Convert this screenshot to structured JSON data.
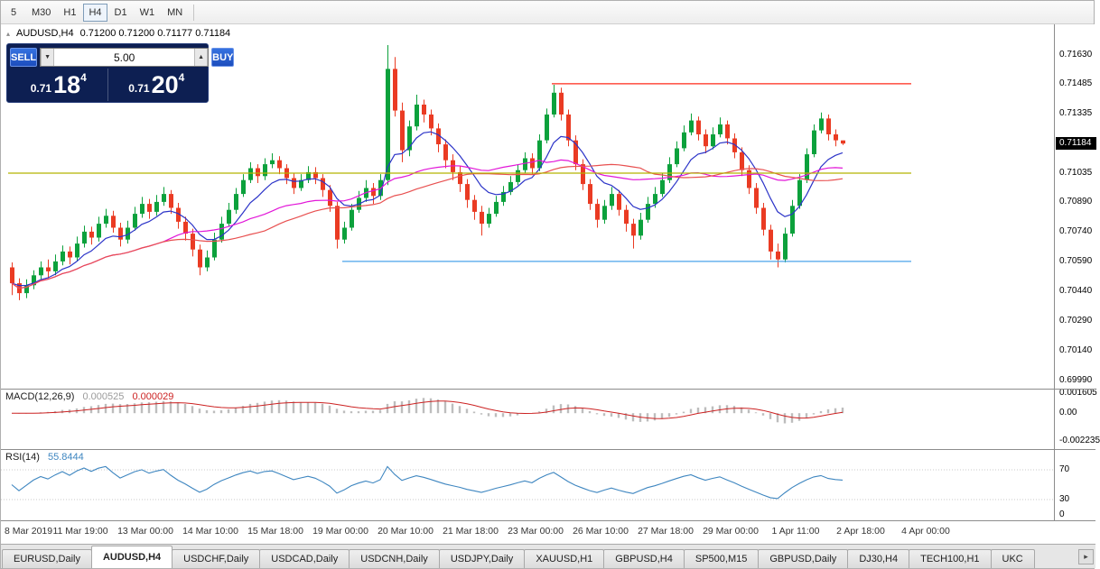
{
  "toolbar": {
    "timeframes": [
      {
        "label": "5",
        "selected": false
      },
      {
        "label": "M30",
        "selected": false
      },
      {
        "label": "H1",
        "selected": false
      },
      {
        "label": "H4",
        "selected": true
      },
      {
        "label": "D1",
        "selected": false
      },
      {
        "label": "W1",
        "selected": false
      },
      {
        "label": "MN",
        "selected": false
      }
    ]
  },
  "chart_header": {
    "collapse_icon": "▴",
    "symbol": "AUDUSD,H4",
    "ohlc": "0.71200 0.71200 0.71177 0.71184"
  },
  "trade_panel": {
    "sell_label": "SELL",
    "buy_label": "BUY",
    "volume": "5.00",
    "spin_up": "▲",
    "spin_down": "▼",
    "bid_prefix": "0.71",
    "bid_big": "18",
    "bid_sup": "4",
    "ask_prefix": "0.71",
    "ask_big": "20",
    "ask_sup": "4"
  },
  "tabs": {
    "scroll_right": "▸",
    "items": [
      {
        "label": "EURUSD,Daily",
        "selected": false
      },
      {
        "label": "AUDUSD,H4",
        "selected": true
      },
      {
        "label": "USDCHF,Daily",
        "selected": false
      },
      {
        "label": "USDCAD,Daily",
        "selected": false
      },
      {
        "label": "USDCNH,Daily",
        "selected": false
      },
      {
        "label": "USDJPY,Daily",
        "selected": false
      },
      {
        "label": "XAUUSD,H1",
        "selected": false
      },
      {
        "label": "GBPUSD,H4",
        "selected": false
      },
      {
        "label": "SP500,M15",
        "selected": false
      },
      {
        "label": "GBPUSD,Daily",
        "selected": false
      },
      {
        "label": "DJ30,H4",
        "selected": false
      },
      {
        "label": "TECH100,H1",
        "selected": false
      },
      {
        "label": "UKC",
        "selected": false
      }
    ]
  },
  "chart_data": [
    {
      "type": "candlestick",
      "symbol": "AUDUSD",
      "timeframe": "H4",
      "current_price": 0.71184,
      "current_price_label": "0.71184",
      "ohlc_current": {
        "open": 0.712,
        "high": 0.712,
        "low": 0.71177,
        "close": 0.71184
      },
      "ylim": [
        0.69948,
        0.71784
      ],
      "yticks": [
        {
          "price": 0.7163,
          "label": "0.71630"
        },
        {
          "price": 0.71485,
          "label": "0.71485"
        },
        {
          "price": 0.71335,
          "label": "0.71335"
        },
        {
          "price": 0.71035,
          "label": "0.71035"
        },
        {
          "price": 0.7089,
          "label": "0.70890"
        },
        {
          "price": 0.7074,
          "label": "0.70740"
        },
        {
          "price": 0.7059,
          "label": "0.70590"
        },
        {
          "price": 0.7044,
          "label": "0.70440"
        },
        {
          "price": 0.7029,
          "label": "0.70290"
        },
        {
          "price": 0.7014,
          "label": "0.70140"
        },
        {
          "price": 0.6999,
          "label": "0.69990"
        }
      ],
      "xticklabels": [
        "8 Mar 2019",
        "11 Mar 19:00",
        "13 Mar 00:00",
        "14 Mar 10:00",
        "15 Mar 18:00",
        "19 Mar 00:00",
        "20 Mar 10:00",
        "21 Mar 18:00",
        "23 Mar 00:00",
        "26 Mar 10:00",
        "27 Mar 18:00",
        "29 Mar 00:00",
        "1 Apr 11:00",
        "2 Apr 18:00",
        "4 Apr 00:00"
      ],
      "colors": {
        "up": "#0ca13c",
        "down": "#ea3b23",
        "bg": "#ffffff"
      },
      "overlays": [
        {
          "name": "ma-fast-blue",
          "method": "ema",
          "period": 8,
          "color": "#2c34c8"
        },
        {
          "name": "ma-mid-magenta",
          "method": "sma",
          "period": 22,
          "color": "#e216d8"
        },
        {
          "name": "ma-slow-red",
          "method": "sma",
          "period": 36,
          "color": "#e85050"
        }
      ],
      "hlines": [
        {
          "name": "resistance-line",
          "price": 0.71485,
          "color": "#ff2a1a",
          "x_from": 610
        },
        {
          "name": "mid-level-line",
          "price": 0.71035,
          "color": "#b5b400",
          "x_from": 8
        },
        {
          "name": "support-line",
          "price": 0.7059,
          "color": "#4ba4ea",
          "x_from": 378
        }
      ],
      "layout": {
        "x0": 10,
        "dx": 8,
        "candle_w": 5,
        "plot_right": 1008,
        "xtick_step_candles": 9,
        "price_anchor": [
          [
            0.7163,
            34
          ],
          [
            0.6999,
            395
          ]
        ]
      },
      "candles": [
        [
          0.7056,
          0.70585,
          0.7042,
          0.7048
        ],
        [
          0.7048,
          0.70505,
          0.70395,
          0.7043
        ],
        [
          0.7043,
          0.705,
          0.70405,
          0.7047
        ],
        [
          0.7047,
          0.70545,
          0.7045,
          0.7052
        ],
        [
          0.7052,
          0.7059,
          0.705,
          0.7056
        ],
        [
          0.7056,
          0.706,
          0.70505,
          0.7054
        ],
        [
          0.7054,
          0.70625,
          0.7052,
          0.7059
        ],
        [
          0.7059,
          0.7067,
          0.7057,
          0.7064
        ],
        [
          0.7064,
          0.70665,
          0.70575,
          0.7061
        ],
        [
          0.7061,
          0.70715,
          0.7059,
          0.7068
        ],
        [
          0.7068,
          0.7077,
          0.7066,
          0.7074
        ],
        [
          0.7074,
          0.70765,
          0.70675,
          0.7071
        ],
        [
          0.7071,
          0.70815,
          0.7069,
          0.7078
        ],
        [
          0.7078,
          0.70855,
          0.7076,
          0.7082
        ],
        [
          0.7082,
          0.70845,
          0.70735,
          0.7076
        ],
        [
          0.7076,
          0.70785,
          0.70665,
          0.707
        ],
        [
          0.707,
          0.70795,
          0.7068,
          0.7076
        ],
        [
          0.7076,
          0.70865,
          0.70745,
          0.7083
        ],
        [
          0.7083,
          0.70915,
          0.7081,
          0.7088
        ],
        [
          0.7088,
          0.70905,
          0.70805,
          0.7084
        ],
        [
          0.7084,
          0.70925,
          0.7082,
          0.7089
        ],
        [
          0.7089,
          0.70965,
          0.7087,
          0.7093
        ],
        [
          0.7093,
          0.7095,
          0.7083,
          0.7086
        ],
        [
          0.7086,
          0.70885,
          0.70755,
          0.7079
        ],
        [
          0.7079,
          0.70815,
          0.70695,
          0.7073
        ],
        [
          0.7073,
          0.70755,
          0.70615,
          0.7065
        ],
        [
          0.7065,
          0.70675,
          0.7052,
          0.7056
        ],
        [
          0.7056,
          0.70645,
          0.7054,
          0.7061
        ],
        [
          0.7061,
          0.70735,
          0.70595,
          0.707
        ],
        [
          0.707,
          0.70815,
          0.70685,
          0.7078
        ],
        [
          0.7078,
          0.70885,
          0.70765,
          0.7085
        ],
        [
          0.7085,
          0.7096,
          0.7083,
          0.7093
        ],
        [
          0.7093,
          0.7103,
          0.70915,
          0.71
        ],
        [
          0.71,
          0.7109,
          0.70985,
          0.7106
        ],
        [
          0.7106,
          0.7108,
          0.70985,
          0.7102
        ],
        [
          0.7102,
          0.7111,
          0.71,
          0.7108
        ],
        [
          0.7108,
          0.71135,
          0.7106,
          0.711
        ],
        [
          0.711,
          0.7112,
          0.7103,
          0.7106
        ],
        [
          0.7106,
          0.7108,
          0.7098,
          0.7101
        ],
        [
          0.7101,
          0.71035,
          0.7093,
          0.7096
        ],
        [
          0.7096,
          0.7103,
          0.70945,
          0.71
        ],
        [
          0.71,
          0.7107,
          0.70985,
          0.7104
        ],
        [
          0.7104,
          0.71065,
          0.7098,
          0.7101
        ],
        [
          0.7101,
          0.7103,
          0.70915,
          0.7095
        ],
        [
          0.7095,
          0.70975,
          0.7084,
          0.7087
        ],
        [
          0.7087,
          0.7089,
          0.70655,
          0.707
        ],
        [
          0.707,
          0.7079,
          0.7068,
          0.7076
        ],
        [
          0.7076,
          0.7088,
          0.70745,
          0.7085
        ],
        [
          0.7085,
          0.70945,
          0.70835,
          0.7091
        ],
        [
          0.7091,
          0.71,
          0.7089,
          0.7096
        ],
        [
          0.7096,
          0.70985,
          0.7088,
          0.7092
        ],
        [
          0.7092,
          0.7103,
          0.709,
          0.71
        ],
        [
          0.71,
          0.7168,
          0.70975,
          0.7156
        ],
        [
          0.7156,
          0.7162,
          0.7132,
          0.7135
        ],
        [
          0.7135,
          0.7139,
          0.7109,
          0.7115
        ],
        [
          0.7115,
          0.713,
          0.7112,
          0.7127
        ],
        [
          0.7127,
          0.7143,
          0.7125,
          0.7138
        ],
        [
          0.7138,
          0.71405,
          0.7129,
          0.7133
        ],
        [
          0.7133,
          0.71355,
          0.71225,
          0.7126
        ],
        [
          0.7126,
          0.71285,
          0.7114,
          0.7118
        ],
        [
          0.7118,
          0.71205,
          0.7106,
          0.711
        ],
        [
          0.711,
          0.7113,
          0.71,
          0.7104
        ],
        [
          0.7104,
          0.7107,
          0.7094,
          0.7098
        ],
        [
          0.7098,
          0.71005,
          0.7086,
          0.709
        ],
        [
          0.709,
          0.70925,
          0.708,
          0.7084
        ],
        [
          0.7084,
          0.7087,
          0.7072,
          0.7078
        ],
        [
          0.7078,
          0.7086,
          0.7076,
          0.7083
        ],
        [
          0.7083,
          0.7092,
          0.70815,
          0.7089
        ],
        [
          0.7089,
          0.7097,
          0.7087,
          0.7094
        ],
        [
          0.7094,
          0.7102,
          0.70925,
          0.7099
        ],
        [
          0.7099,
          0.7108,
          0.70975,
          0.7105
        ],
        [
          0.7105,
          0.7114,
          0.71035,
          0.7111
        ],
        [
          0.7111,
          0.71135,
          0.7103,
          0.7106
        ],
        [
          0.7106,
          0.7123,
          0.71045,
          0.712
        ],
        [
          0.712,
          0.7136,
          0.71185,
          0.7133
        ],
        [
          0.7133,
          0.7148,
          0.71315,
          0.7144
        ],
        [
          0.7144,
          0.71465,
          0.713,
          0.7133
        ],
        [
          0.7133,
          0.71355,
          0.7117,
          0.712
        ],
        [
          0.712,
          0.71225,
          0.7105,
          0.7108
        ],
        [
          0.7108,
          0.71105,
          0.7095,
          0.7098
        ],
        [
          0.7098,
          0.71005,
          0.7085,
          0.7088
        ],
        [
          0.7088,
          0.70905,
          0.7076,
          0.708
        ],
        [
          0.708,
          0.709,
          0.7078,
          0.7087
        ],
        [
          0.7087,
          0.70965,
          0.7085,
          0.7093
        ],
        [
          0.7093,
          0.7095,
          0.7082,
          0.7085
        ],
        [
          0.7085,
          0.70875,
          0.7074,
          0.7078
        ],
        [
          0.7078,
          0.70805,
          0.70655,
          0.7072
        ],
        [
          0.7072,
          0.70835,
          0.707,
          0.708
        ],
        [
          0.708,
          0.70915,
          0.70785,
          0.7088
        ],
        [
          0.7088,
          0.70965,
          0.7086,
          0.7093
        ],
        [
          0.7093,
          0.71035,
          0.70915,
          0.71
        ],
        [
          0.71,
          0.71115,
          0.70985,
          0.7108
        ],
        [
          0.7108,
          0.71195,
          0.71065,
          0.7116
        ],
        [
          0.7116,
          0.71275,
          0.71145,
          0.7124
        ],
        [
          0.7124,
          0.71335,
          0.71225,
          0.713
        ],
        [
          0.713,
          0.7132,
          0.712,
          0.7123
        ],
        [
          0.7123,
          0.71255,
          0.71135,
          0.7117
        ],
        [
          0.7117,
          0.71265,
          0.71155,
          0.7123
        ],
        [
          0.7123,
          0.71315,
          0.71215,
          0.7128
        ],
        [
          0.7128,
          0.713,
          0.7118,
          0.7121
        ],
        [
          0.7121,
          0.71235,
          0.7111,
          0.7114
        ],
        [
          0.7114,
          0.71165,
          0.7102,
          0.7105
        ],
        [
          0.7105,
          0.71075,
          0.7093,
          0.7096
        ],
        [
          0.7096,
          0.70985,
          0.7083,
          0.7086
        ],
        [
          0.7086,
          0.70885,
          0.7072,
          0.7075
        ],
        [
          0.7075,
          0.70775,
          0.706,
          0.7064
        ],
        [
          0.7064,
          0.7068,
          0.7056,
          0.706
        ],
        [
          0.706,
          0.7076,
          0.70585,
          0.7073
        ],
        [
          0.7073,
          0.709,
          0.70715,
          0.7087
        ],
        [
          0.7087,
          0.7103,
          0.70855,
          0.71
        ],
        [
          0.71,
          0.7116,
          0.70985,
          0.7113
        ],
        [
          0.7113,
          0.7128,
          0.71115,
          0.7125
        ],
        [
          0.7125,
          0.7134,
          0.71235,
          0.7131
        ],
        [
          0.7131,
          0.7133,
          0.712,
          0.7123
        ],
        [
          0.7123,
          0.71255,
          0.7117,
          0.712
        ],
        [
          0.712,
          0.712,
          0.71177,
          0.71184
        ]
      ]
    },
    {
      "type": "macd",
      "label": "MACD(12,26,9)",
      "params": [
        12,
        26,
        9
      ],
      "value_main": "0.000525",
      "value_signal": "0.000029",
      "ylim": [
        -0.002235,
        0.001605
      ],
      "yticks": [
        {
          "v": 0.001605,
          "label": "0.001605"
        },
        {
          "v": 0,
          "label": "0.00"
        },
        {
          "v": -0.002235,
          "label": "-0.002235"
        }
      ],
      "colors": {
        "histogram": "#bdbdbd",
        "signal": "#cc2222"
      },
      "pixel_anchor": [
        [
          0.001605,
          409
        ],
        [
          -0.002235,
          462
        ]
      ]
    },
    {
      "type": "rsi",
      "label": "RSI(14)",
      "period": 14,
      "value": "55.8444",
      "levels": [
        70,
        30
      ],
      "yticks": [
        {
          "v": 70,
          "label": "70"
        },
        {
          "v": 30,
          "label": "30"
        },
        {
          "v": 0,
          "label": "0"
        }
      ],
      "color": "#3e86c0",
      "level_color": "#c8c8c8",
      "pixel_anchor": [
        [
          70,
          494
        ],
        [
          30,
          527
        ]
      ]
    }
  ]
}
